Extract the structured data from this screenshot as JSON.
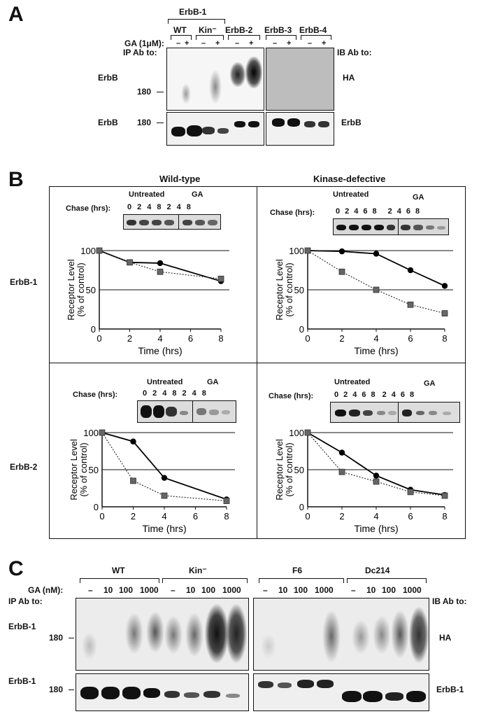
{
  "panelA": {
    "letter": "A",
    "group_erbb1": "ErbB-1",
    "lanes": [
      "WT",
      "Kin⁻",
      "ErbB-2",
      "ErbB-3",
      "ErbB-4"
    ],
    "ga_label": "GA (1μM):",
    "ip_label": "IP Ab to:",
    "ib_label": "IB Ab to:",
    "minus": "–",
    "plus": "+",
    "row1_left": "ErbB",
    "row1_right": "HA",
    "row2_left": "ErbB",
    "row2_right": "ErbB",
    "mw": "180"
  },
  "panelB": {
    "letter": "B",
    "col_titles": [
      "Wild-type",
      "Kinase-defective"
    ],
    "row_labels": [
      "ErbB-1",
      "ErbB-2"
    ],
    "chase_label": "Chase (hrs):",
    "untreated": "Untreated",
    "ga": "GA",
    "ylabel_1": "Receptor Level",
    "ylabel_2": "(% of control)",
    "xlabel": "Time (hrs)",
    "lane_labels_4": [
      "0",
      "2",
      "4",
      "8",
      "2",
      "4",
      "8"
    ],
    "lane_labels_6": [
      "0",
      "2",
      "4",
      "6",
      "8",
      "2",
      "4",
      "6",
      "8"
    ]
  },
  "chart_data": [
    {
      "type": "line",
      "title": "Wild-type",
      "row": "ErbB-1",
      "xlabel": "Time (hrs)",
      "ylabel": "Receptor Level (% of control)",
      "xlim": [
        0,
        8
      ],
      "ylim": [
        0,
        100
      ],
      "xticks": [
        0,
        2,
        4,
        6,
        8
      ],
      "yticks": [
        0,
        50,
        100
      ],
      "series": [
        {
          "name": "Untreated",
          "x": [
            0,
            2,
            4,
            8
          ],
          "values": [
            100,
            85,
            84,
            61
          ]
        },
        {
          "name": "GA",
          "x": [
            0,
            2,
            4,
            8
          ],
          "values": [
            100,
            85,
            73,
            64
          ]
        }
      ]
    },
    {
      "type": "line",
      "title": "Kinase-defective",
      "row": "ErbB-1",
      "xlabel": "Time (hrs)",
      "ylabel": "Receptor Level (% of control)",
      "xlim": [
        0,
        8
      ],
      "ylim": [
        0,
        100
      ],
      "xticks": [
        0,
        2,
        4,
        6,
        8
      ],
      "yticks": [
        0,
        50,
        100
      ],
      "series": [
        {
          "name": "Untreated",
          "x": [
            0,
            2,
            4,
            6,
            8
          ],
          "values": [
            100,
            99,
            96,
            75,
            55
          ]
        },
        {
          "name": "GA",
          "x": [
            0,
            2,
            4,
            6,
            8
          ],
          "values": [
            100,
            73,
            50,
            31,
            20
          ]
        }
      ]
    },
    {
      "type": "line",
      "title": "Wild-type",
      "row": "ErbB-2",
      "xlabel": "Time (hrs)",
      "ylabel": "Receptor Level (% of control)",
      "xlim": [
        0,
        8
      ],
      "ylim": [
        0,
        100
      ],
      "xticks": [
        0,
        2,
        4,
        6,
        8
      ],
      "yticks": [
        0,
        50,
        100
      ],
      "series": [
        {
          "name": "Untreated",
          "x": [
            0,
            2,
            4,
            8
          ],
          "values": [
            100,
            88,
            39,
            10
          ]
        },
        {
          "name": "GA",
          "x": [
            0,
            2,
            4,
            8
          ],
          "values": [
            100,
            35,
            15,
            8
          ]
        }
      ]
    },
    {
      "type": "line",
      "title": "Kinase-defective",
      "row": "ErbB-2",
      "xlabel": "Time (hrs)",
      "ylabel": "Receptor Level (% of control)",
      "xlim": [
        0,
        8
      ],
      "ylim": [
        0,
        100
      ],
      "xticks": [
        0,
        2,
        4,
        6,
        8
      ],
      "yticks": [
        0,
        50,
        100
      ],
      "series": [
        {
          "name": "Untreated",
          "x": [
            0,
            2,
            4,
            6,
            8
          ],
          "values": [
            100,
            73,
            42,
            23,
            16
          ]
        },
        {
          "name": "GA",
          "x": [
            0,
            2,
            4,
            6,
            8
          ],
          "values": [
            100,
            47,
            34,
            20,
            15
          ]
        }
      ]
    }
  ],
  "panelC": {
    "letter": "C",
    "groups": [
      "WT",
      "Kin⁻",
      "F6",
      "Dc214"
    ],
    "ga_label": "GA (nM):",
    "doses": [
      "–",
      "10",
      "100",
      "1000"
    ],
    "ip_label": "IP Ab to:",
    "ib_label": "IB Ab to:",
    "row1_left": "ErbB-1",
    "row1_right": "HA",
    "row2_left": "ErbB-1",
    "row2_right": "ErbB-1",
    "mw": "180"
  }
}
